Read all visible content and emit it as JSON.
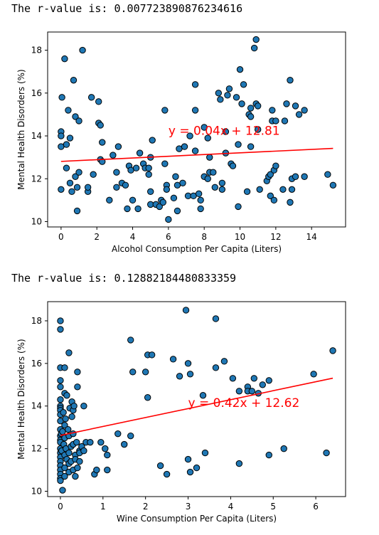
{
  "outputs": [
    {
      "prefix": "The r-value is: ",
      "value": "0.007723890876234616"
    },
    {
      "prefix": "The r-value is: ",
      "value": "0.12882184480833359"
    }
  ],
  "colors": {
    "marker_fill": "#1f77b4",
    "marker_edge": "#000000",
    "fit_line": "#ff0000"
  },
  "chart_data": [
    {
      "type": "scatter",
      "xlabel": "Alcohol Consumption Per Capita (Liters)",
      "ylabel": "Mental Health Disorders (%)",
      "xlim": [
        -0.75,
        15.9
      ],
      "ylim": [
        9.75,
        18.85
      ],
      "xticks": [
        0,
        2,
        4,
        6,
        8,
        10,
        12,
        14
      ],
      "yticks": [
        10,
        12,
        14,
        16,
        18
      ],
      "fit": {
        "slope": 0.04,
        "intercept": 12.81,
        "x_range": [
          0,
          15.2
        ],
        "label": "y = 0.04x + 12.81",
        "label_at": [
          6.0,
          14.05
        ]
      },
      "points": [
        [
          0.0,
          14.2
        ],
        [
          0.0,
          14.0
        ],
        [
          0.0,
          13.5
        ],
        [
          0.0,
          11.5
        ],
        [
          0.05,
          15.8
        ],
        [
          0.2,
          17.6
        ],
        [
          0.3,
          13.6
        ],
        [
          0.3,
          12.5
        ],
        [
          0.4,
          15.2
        ],
        [
          0.5,
          13.9
        ],
        [
          0.5,
          11.8
        ],
        [
          0.6,
          11.4
        ],
        [
          0.7,
          16.6
        ],
        [
          0.8,
          14.9
        ],
        [
          0.8,
          12.1
        ],
        [
          0.9,
          10.5
        ],
        [
          0.9,
          11.6
        ],
        [
          1.0,
          14.7
        ],
        [
          1.0,
          12.3
        ],
        [
          1.2,
          18.0
        ],
        [
          1.5,
          11.4
        ],
        [
          1.5,
          11.6
        ],
        [
          1.7,
          15.8
        ],
        [
          1.8,
          12.2
        ],
        [
          2.1,
          14.6
        ],
        [
          2.1,
          15.6
        ],
        [
          2.2,
          14.5
        ],
        [
          2.2,
          12.9
        ],
        [
          2.3,
          13.7
        ],
        [
          2.3,
          12.8
        ],
        [
          2.7,
          11.0
        ],
        [
          2.9,
          13.1
        ],
        [
          3.1,
          12.3
        ],
        [
          3.1,
          11.6
        ],
        [
          3.2,
          13.5
        ],
        [
          3.4,
          11.8
        ],
        [
          3.6,
          11.7
        ],
        [
          3.7,
          10.6
        ],
        [
          3.8,
          12.6
        ],
        [
          3.9,
          12.4
        ],
        [
          4.0,
          11.0
        ],
        [
          4.2,
          12.5
        ],
        [
          4.3,
          10.6
        ],
        [
          4.4,
          13.2
        ],
        [
          4.6,
          12.7
        ],
        [
          4.7,
          12.5
        ],
        [
          4.9,
          12.5
        ],
        [
          4.9,
          12.2
        ],
        [
          5.0,
          13.0
        ],
        [
          5.0,
          11.4
        ],
        [
          5.0,
          10.8
        ],
        [
          5.1,
          13.8
        ],
        [
          5.3,
          10.8
        ],
        [
          5.5,
          10.7
        ],
        [
          5.6,
          11.0
        ],
        [
          5.7,
          10.9
        ],
        [
          5.8,
          15.2
        ],
        [
          5.8,
          12.7
        ],
        [
          5.9,
          11.7
        ],
        [
          5.9,
          11.5
        ],
        [
          6.0,
          10.1
        ],
        [
          6.3,
          11.1
        ],
        [
          6.4,
          12.1
        ],
        [
          6.5,
          11.7
        ],
        [
          6.5,
          10.5
        ],
        [
          6.6,
          13.4
        ],
        [
          6.8,
          11.8
        ],
        [
          6.9,
          13.5
        ],
        [
          7.1,
          11.2
        ],
        [
          7.2,
          14.0
        ],
        [
          7.4,
          11.2
        ],
        [
          7.5,
          16.4
        ],
        [
          7.5,
          15.2
        ],
        [
          7.5,
          13.3
        ],
        [
          7.7,
          11.3
        ],
        [
          7.8,
          11.0
        ],
        [
          7.8,
          10.6
        ],
        [
          8.0,
          14.4
        ],
        [
          8.0,
          12.1
        ],
        [
          8.2,
          13.9
        ],
        [
          8.2,
          12.0
        ],
        [
          8.3,
          13.0
        ],
        [
          8.3,
          12.3
        ],
        [
          8.5,
          12.3
        ],
        [
          8.6,
          11.6
        ],
        [
          8.8,
          16.0
        ],
        [
          8.9,
          15.7
        ],
        [
          9.0,
          11.8
        ],
        [
          9.0,
          11.5
        ],
        [
          9.2,
          13.2
        ],
        [
          9.2,
          14.2
        ],
        [
          9.3,
          15.9
        ],
        [
          9.4,
          16.2
        ],
        [
          9.5,
          12.7
        ],
        [
          9.6,
          12.6
        ],
        [
          9.8,
          15.8
        ],
        [
          9.9,
          13.6
        ],
        [
          9.9,
          10.7
        ],
        [
          10.0,
          17.1
        ],
        [
          10.1,
          15.5
        ],
        [
          10.2,
          16.4
        ],
        [
          10.4,
          11.4
        ],
        [
          10.5,
          15.0
        ],
        [
          10.6,
          15.3
        ],
        [
          10.6,
          13.5
        ],
        [
          10.6,
          14.9
        ],
        [
          10.8,
          18.1
        ],
        [
          10.9,
          18.5
        ],
        [
          10.9,
          15.5
        ],
        [
          11.0,
          15.4
        ],
        [
          11.0,
          14.3
        ],
        [
          11.1,
          11.5
        ],
        [
          11.5,
          11.9
        ],
        [
          11.6,
          12.1
        ],
        [
          11.7,
          12.2
        ],
        [
          11.7,
          11.2
        ],
        [
          11.8,
          15.2
        ],
        [
          11.8,
          14.7
        ],
        [
          11.9,
          12.4
        ],
        [
          11.9,
          11.0
        ],
        [
          12.0,
          12.6
        ],
        [
          12.0,
          14.7
        ],
        [
          12.4,
          11.5
        ],
        [
          12.5,
          14.7
        ],
        [
          12.6,
          15.5
        ],
        [
          12.8,
          16.6
        ],
        [
          12.8,
          10.9
        ],
        [
          12.9,
          12.0
        ],
        [
          12.9,
          11.5
        ],
        [
          13.1,
          12.1
        ],
        [
          13.1,
          15.4
        ],
        [
          13.3,
          15.0
        ],
        [
          13.6,
          12.1
        ],
        [
          13.6,
          15.2
        ],
        [
          14.9,
          12.2
        ],
        [
          15.2,
          11.7
        ]
      ]
    },
    {
      "type": "scatter",
      "xlabel": "Wine Consumption Per Capita (Liters)",
      "ylabel": "Mental Health Disorders (%)",
      "xlim": [
        -0.3,
        6.7
      ],
      "ylim": [
        9.75,
        18.9
      ],
      "xticks": [
        0,
        1,
        2,
        3,
        4,
        5,
        6
      ],
      "yticks": [
        10,
        12,
        14,
        16,
        18
      ],
      "fit": {
        "slope": 0.42,
        "intercept": 12.62,
        "x_range": [
          0,
          6.4
        ],
        "label": "y = 0.42x + 12.62",
        "label_at": [
          3.0,
          13.95
        ]
      },
      "points": [
        [
          0.0,
          18.0
        ],
        [
          0.0,
          17.6
        ],
        [
          0.0,
          15.8
        ],
        [
          0.0,
          15.2
        ],
        [
          0.0,
          14.9
        ],
        [
          0.0,
          14.3
        ],
        [
          0.0,
          14.0
        ],
        [
          0.0,
          13.9
        ],
        [
          0.0,
          13.8
        ],
        [
          0.0,
          13.6
        ],
        [
          0.0,
          13.3
        ],
        [
          0.0,
          12.9
        ],
        [
          0.0,
          12.6
        ],
        [
          0.0,
          12.4
        ],
        [
          0.0,
          12.3
        ],
        [
          0.0,
          12.0
        ],
        [
          0.0,
          11.8
        ],
        [
          0.0,
          11.6
        ],
        [
          0.0,
          11.4
        ],
        [
          0.0,
          11.2
        ],
        [
          0.0,
          11.0
        ],
        [
          0.0,
          10.8
        ],
        [
          0.0,
          10.6
        ],
        [
          0.0,
          10.5
        ],
        [
          0.02,
          12.7
        ],
        [
          0.03,
          11.9
        ],
        [
          0.05,
          12.8
        ],
        [
          0.05,
          10.05
        ],
        [
          0.07,
          13.7
        ],
        [
          0.08,
          12.2
        ],
        [
          0.1,
          15.8
        ],
        [
          0.1,
          14.6
        ],
        [
          0.1,
          13.1
        ],
        [
          0.1,
          12.5
        ],
        [
          0.1,
          11.7
        ],
        [
          0.1,
          11.1
        ],
        [
          0.1,
          10.7
        ],
        [
          0.12,
          13.4
        ],
        [
          0.13,
          12.0
        ],
        [
          0.15,
          14.5
        ],
        [
          0.15,
          11.5
        ],
        [
          0.18,
          12.9
        ],
        [
          0.2,
          16.5
        ],
        [
          0.2,
          12.6
        ],
        [
          0.2,
          11.8
        ],
        [
          0.2,
          11.3
        ],
        [
          0.2,
          10.9
        ],
        [
          0.22,
          13.9
        ],
        [
          0.25,
          12.1
        ],
        [
          0.25,
          11.4
        ],
        [
          0.27,
          14.2
        ],
        [
          0.27,
          13.5
        ],
        [
          0.3,
          13.8
        ],
        [
          0.3,
          12.2
        ],
        [
          0.3,
          12.7
        ],
        [
          0.3,
          11.0
        ],
        [
          0.32,
          14.0
        ],
        [
          0.35,
          11.7
        ],
        [
          0.35,
          11.5
        ],
        [
          0.35,
          10.7
        ],
        [
          0.38,
          12.3
        ],
        [
          0.4,
          15.6
        ],
        [
          0.4,
          14.9
        ],
        [
          0.4,
          11.1
        ],
        [
          0.45,
          11.9
        ],
        [
          0.45,
          11.8
        ],
        [
          0.45,
          11.4
        ],
        [
          0.5,
          12.1
        ],
        [
          0.55,
          14.0
        ],
        [
          0.55,
          11.9
        ],
        [
          0.6,
          12.3
        ],
        [
          0.7,
          12.3
        ],
        [
          0.8,
          10.8
        ],
        [
          0.85,
          11.0
        ],
        [
          0.95,
          12.3
        ],
        [
          1.05,
          12.0
        ],
        [
          1.1,
          11.7
        ],
        [
          1.1,
          11.0
        ],
        [
          1.35,
          12.7
        ],
        [
          1.5,
          12.2
        ],
        [
          1.65,
          17.1
        ],
        [
          1.65,
          12.6
        ],
        [
          1.7,
          15.6
        ],
        [
          2.0,
          15.6
        ],
        [
          2.05,
          16.4
        ],
        [
          2.05,
          14.4
        ],
        [
          2.15,
          16.4
        ],
        [
          2.35,
          11.2
        ],
        [
          2.5,
          10.8
        ],
        [
          2.65,
          16.2
        ],
        [
          2.8,
          15.4
        ],
        [
          2.95,
          18.5
        ],
        [
          3.0,
          11.5
        ],
        [
          3.0,
          16.0
        ],
        [
          3.05,
          15.5
        ],
        [
          3.05,
          10.9
        ],
        [
          3.2,
          11.1
        ],
        [
          3.35,
          14.5
        ],
        [
          3.4,
          11.8
        ],
        [
          3.65,
          15.8
        ],
        [
          3.65,
          18.1
        ],
        [
          3.85,
          16.1
        ],
        [
          4.05,
          15.3
        ],
        [
          4.2,
          11.3
        ],
        [
          4.2,
          14.7
        ],
        [
          4.4,
          14.9
        ],
        [
          4.4,
          14.7
        ],
        [
          4.5,
          14.7
        ],
        [
          4.55,
          15.3
        ],
        [
          4.65,
          14.6
        ],
        [
          4.75,
          15.0
        ],
        [
          4.9,
          15.2
        ],
        [
          4.9,
          11.7
        ],
        [
          5.25,
          12.0
        ],
        [
          5.95,
          15.5
        ],
        [
          6.25,
          11.8
        ],
        [
          6.4,
          16.6
        ]
      ]
    }
  ]
}
